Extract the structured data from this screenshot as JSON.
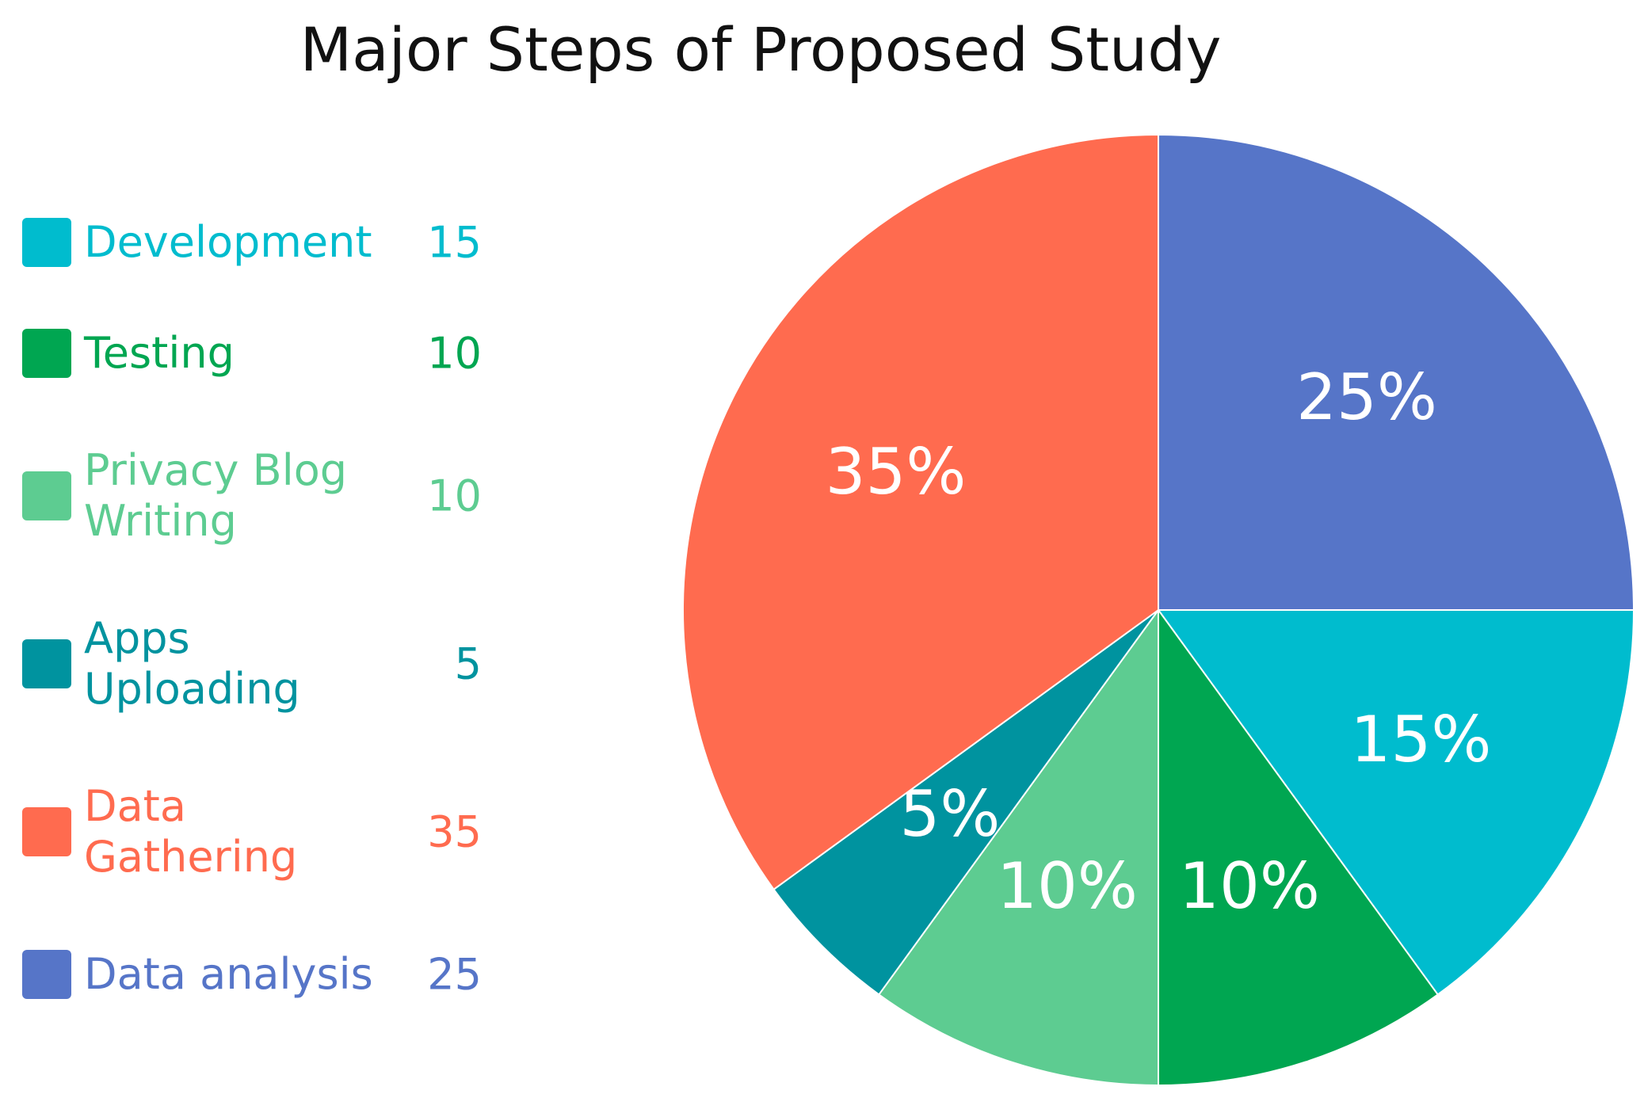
{
  "chart_data": {
    "type": "pie",
    "title": "Major Steps of Proposed Study",
    "legend_position": "left",
    "slices": [
      {
        "label": "Development",
        "value": 15,
        "percent_label": "15%",
        "color": "#00BCCE"
      },
      {
        "label": "Testing",
        "value": 10,
        "percent_label": "10%",
        "color": "#00A651"
      },
      {
        "label": "Privacy Blog Writing",
        "value": 10,
        "percent_label": "10%",
        "color": "#5DCC91"
      },
      {
        "label": "Apps Uploading",
        "value": 5,
        "percent_label": "5%",
        "color": "#00939F"
      },
      {
        "label": "Data Gathering",
        "value": 35,
        "percent_label": "35%",
        "color": "#FF6B4F"
      },
      {
        "label": "Data analysis",
        "value": 25,
        "percent_label": "25%",
        "color": "#5675C8"
      }
    ]
  }
}
